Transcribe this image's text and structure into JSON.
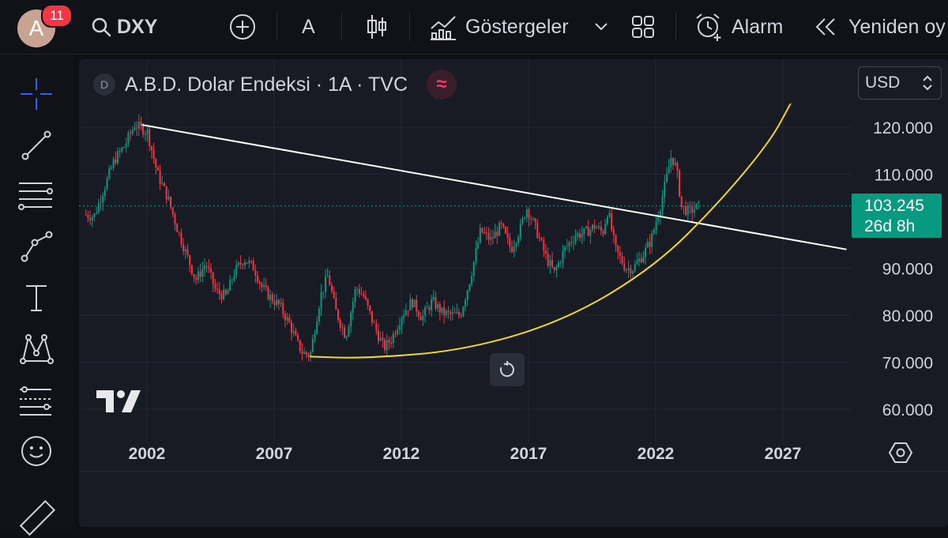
{
  "header": {
    "notification_count": "11",
    "avatar_letter": "A",
    "symbol": "DXY",
    "interval": "A",
    "indicators_label": "Göstergeler",
    "alarm_label": "Alarm",
    "replay_label": "Yeniden oy"
  },
  "chart": {
    "legend_source_badge": "D",
    "legend_title": "A.B.D. Dolar Endeksi · 1A · TVC",
    "currency": "USD",
    "last_price": "103.245",
    "countdown": "26d 8h",
    "colors": {
      "up": "#089981",
      "down": "#f23645",
      "trendline": "#ffffff",
      "curve": "#f2d91c",
      "price_line": "#089981"
    }
  },
  "chart_data": {
    "type": "candlestick",
    "title": "A.B.D. Dolar Endeksi · 1A · TVC",
    "x_ticks": [
      "2002",
      "2007",
      "2012",
      "2017",
      "2022",
      "2027"
    ],
    "y_ticks": [
      "120.000",
      "110.000",
      "90.000",
      "80.000",
      "70.000",
      "60.000"
    ],
    "ylim": [
      55,
      125
    ],
    "xlim": [
      1999.5,
      2029.5
    ],
    "last_price": 103.245,
    "series_path": [
      [
        1999.6,
        101.5
      ],
      [
        2000.0,
        101.0
      ],
      [
        2000.4,
        107.0
      ],
      [
        2000.8,
        113.0
      ],
      [
        2001.2,
        116.0
      ],
      [
        2001.6,
        120.5
      ],
      [
        2002.1,
        119.0
      ],
      [
        2002.5,
        110.0
      ],
      [
        2002.9,
        105.0
      ],
      [
        2003.3,
        98.0
      ],
      [
        2003.7,
        92.0
      ],
      [
        2004.0,
        87.5
      ],
      [
        2004.4,
        91.0
      ],
      [
        2004.8,
        85.0
      ],
      [
        2005.2,
        84.0
      ],
      [
        2005.5,
        89.0
      ],
      [
        2005.9,
        92.0
      ],
      [
        2006.3,
        90.0
      ],
      [
        2006.6,
        86.0
      ],
      [
        2006.9,
        84.0
      ],
      [
        2007.3,
        82.0
      ],
      [
        2007.7,
        78.0
      ],
      [
        2008.0,
        74.0
      ],
      [
        2008.2,
        72.0
      ],
      [
        2008.5,
        71.5
      ],
      [
        2008.9,
        84.0
      ],
      [
        2009.2,
        88.5
      ],
      [
        2009.5,
        81.0
      ],
      [
        2009.9,
        75.5
      ],
      [
        2010.3,
        86.0
      ],
      [
        2010.6,
        84.0
      ],
      [
        2011.0,
        78.0
      ],
      [
        2011.4,
        73.0
      ],
      [
        2011.7,
        75.0
      ],
      [
        2012.1,
        80.0
      ],
      [
        2012.5,
        83.0
      ],
      [
        2012.9,
        79.5
      ],
      [
        2013.3,
        83.0
      ],
      [
        2013.7,
        80.5
      ],
      [
        2014.1,
        80.0
      ],
      [
        2014.4,
        80.0
      ],
      [
        2014.8,
        88.0
      ],
      [
        2015.2,
        98.0
      ],
      [
        2015.6,
        96.0
      ],
      [
        2016.0,
        99.0
      ],
      [
        2016.4,
        94.0
      ],
      [
        2016.8,
        99.0
      ],
      [
        2017.0,
        103.0
      ],
      [
        2017.4,
        98.0
      ],
      [
        2017.8,
        92.0
      ],
      [
        2018.1,
        89.0
      ],
      [
        2018.5,
        94.0
      ],
      [
        2018.9,
        97.0
      ],
      [
        2019.3,
        97.5
      ],
      [
        2019.7,
        99.0
      ],
      [
        2020.0,
        97.5
      ],
      [
        2020.2,
        102.5
      ],
      [
        2020.5,
        94.0
      ],
      [
        2020.9,
        90.0
      ],
      [
        2021.2,
        90.0
      ],
      [
        2021.6,
        93.0
      ],
      [
        2021.9,
        96.0
      ],
      [
        2022.3,
        104.0
      ],
      [
        2022.7,
        114.0
      ],
      [
        2022.9,
        111.0
      ],
      [
        2023.1,
        103.0
      ],
      [
        2023.4,
        102.0
      ],
      [
        2023.7,
        103.0
      ]
    ],
    "trendline": {
      "from": [
        2001.8,
        120.5
      ],
      "to": [
        2029.5,
        94.0
      ]
    },
    "curve": {
      "points": [
        [
          2008.4,
          71.2
        ],
        [
          2010.5,
          70.8
        ],
        [
          2014.5,
          72.5
        ],
        [
          2018.5,
          79.0
        ],
        [
          2022.0,
          90.5
        ],
        [
          2024.5,
          104.0
        ],
        [
          2026.5,
          117.0
        ],
        [
          2027.3,
          125.0
        ]
      ]
    }
  }
}
